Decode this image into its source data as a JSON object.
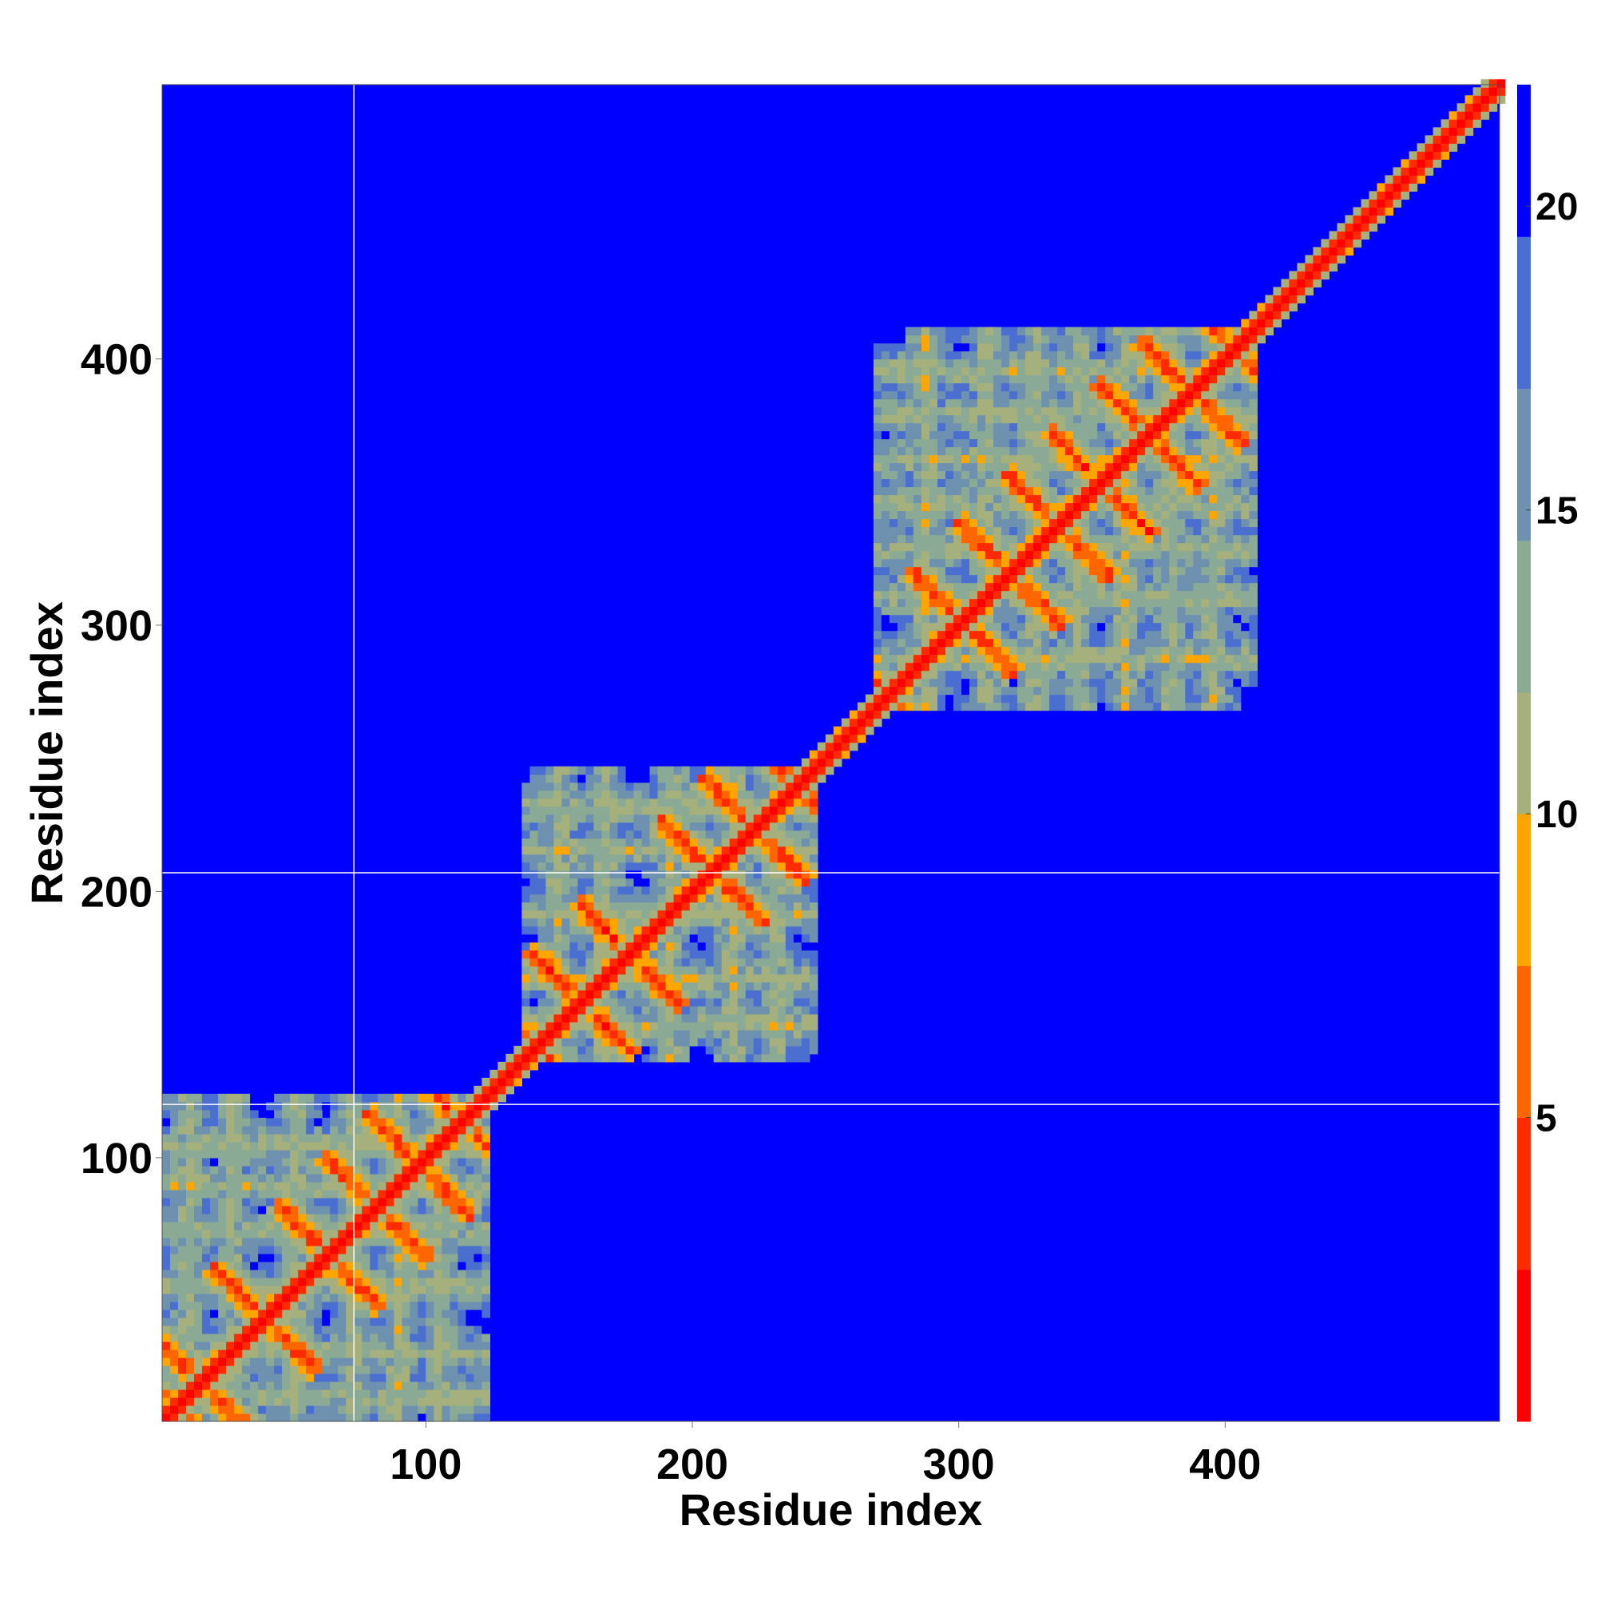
{
  "chart_data": {
    "type": "heatmap",
    "title": "",
    "xlabel": "Residue index",
    "ylabel": "Residue index",
    "xlim": [
      1,
      503
    ],
    "ylim": [
      1,
      503
    ],
    "x_ticks": [
      100,
      200,
      300,
      400
    ],
    "y_ticks": [
      100,
      200,
      300,
      400
    ],
    "colorbar": {
      "ticks": [
        5,
        10,
        15,
        20
      ],
      "range": [
        0,
        22
      ],
      "description": "distance scale: red (near) to orange, sage green, steel blue, saturated blue (far)"
    },
    "background_value": 22,
    "domain_boundaries": {
      "vertical_x": [
        73
      ],
      "horizontal_y": [
        120,
        207
      ]
    },
    "domains": [
      {
        "range": [
          1,
          118
        ],
        "helix_axes": [
          4,
          14,
          38,
          62,
          80,
          96,
          112
        ]
      },
      {
        "range": [
          138,
          240
        ],
        "helix_axes": [
          140,
          157,
          175,
          206,
          222,
          238
        ]
      },
      {
        "range": [
          270,
          405
        ],
        "helix_axes": [
          272,
          300,
          318,
          336,
          352,
          370,
          386,
          402
        ]
      }
    ],
    "colors": {
      "background": "#0000ff",
      "scale": [
        "#ff0000",
        "#ff2a00",
        "#ff6600",
        "#ffa500",
        "#a6b07c",
        "#8aaa96",
        "#6f91b0",
        "#4a6fd0",
        "#0000ff"
      ]
    }
  }
}
